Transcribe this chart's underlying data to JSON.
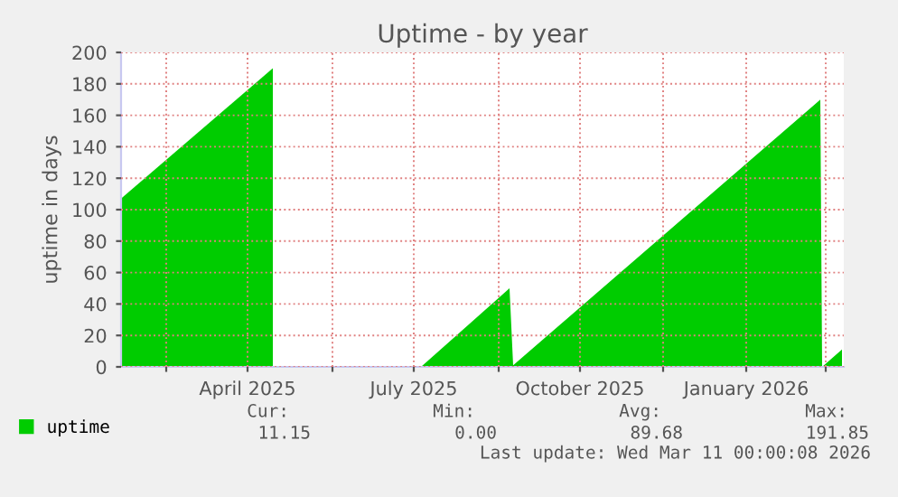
{
  "chart_data": {
    "type": "area",
    "title": "Uptime - by year",
    "ylabel": "uptime in days",
    "x": [
      "2025-02-04",
      "2025-04-29",
      "2025-04-30",
      "2025-07-20",
      "2025-09-07",
      "2025-09-09",
      "2026-02-26",
      "2026-02-27",
      "2026-03-10"
    ],
    "series": [
      {
        "name": "uptime",
        "color": "#00cc00",
        "values": [
          107,
          190,
          null,
          0,
          50,
          1,
          170,
          0,
          11
        ]
      }
    ],
    "xlim": [
      "2025-02-04",
      "2026-03-11"
    ],
    "xticks": [
      {
        "value": "2025-03-01",
        "label": null
      },
      {
        "value": "2025-04-15",
        "label": "April 2025"
      },
      {
        "value": "2025-06-01",
        "label": null
      },
      {
        "value": "2025-07-16",
        "label": "July 2025"
      },
      {
        "value": "2025-09-01",
        "label": null
      },
      {
        "value": "2025-10-16",
        "label": "October 2025"
      },
      {
        "value": "2025-12-01",
        "label": null
      },
      {
        "value": "2026-01-16",
        "label": "January 2026"
      },
      {
        "value": "2026-03-01",
        "label": null
      }
    ],
    "ylim": [
      0,
      200
    ],
    "yticks": [
      0,
      20,
      40,
      60,
      80,
      100,
      120,
      140,
      160,
      180,
      200
    ],
    "grid": true,
    "legend": "bottom left",
    "annotations": [
      "Cur:",
      "Min:",
      "Avg:",
      "Max:",
      "11.15",
      "0.00",
      "89.68",
      "191.85",
      "Last update: Wed Mar 11 00:00:08 2026"
    ]
  }
}
